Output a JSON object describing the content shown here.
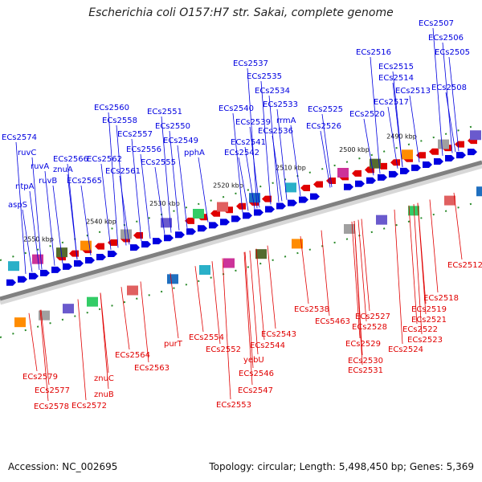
{
  "title": "Escherichia coli O157:H7 str. Sakai, complete genome",
  "accession": "Accession: NC_002695",
  "summary": "Topology: circular; Length: 5,498,450 bp; Genes: 5,369",
  "colors": {
    "forward": "#0000e0",
    "reverse": "#e00000",
    "backbone": "#808080"
  },
  "kbp_labels": [
    "2490 kbp",
    "2500 kbp",
    "2510 kbp",
    "2520 kbp",
    "2530 kbp",
    "2540 kbp",
    "2550 kbp"
  ],
  "forward_genes": [
    "ECs2507",
    "ECs2506",
    "ECs2505",
    "ECs2508",
    "ECs2516",
    "ECs2515",
    "ECs2514",
    "ECs2513",
    "ECs2517",
    "ECs2520",
    "ECs2525",
    "ECs2526",
    "ECs2537",
    "ECs2535",
    "ECs2534",
    "ECs2533",
    "rrmA",
    "ECs2536",
    "ECs2540",
    "ECs2539",
    "ECs2541",
    "ECs2542",
    "ECs2551",
    "ECs2550",
    "ECs2549",
    "pphA",
    "ECs2560",
    "ECs2558",
    "ECs2557",
    "ECs2556",
    "ECs2555",
    "ECs2562",
    "ECs2561",
    "ECs2566",
    "znuA",
    "ECs2565",
    "ECs2574",
    "ruvC",
    "ruvA",
    "ruvB",
    "ntpA",
    "aspS"
  ],
  "reverse_genes": [
    "ECs2512",
    "ECs2518",
    "ECs2519",
    "ECs2521",
    "ECs2522",
    "ECs2523",
    "ECs2524",
    "ECs2527",
    "ECs2528",
    "ECs2529",
    "ECs2530",
    "ECs2531",
    "ECs2538",
    "ECs5463",
    "ECs2543",
    "ECs2544",
    "yebU",
    "ECs2546",
    "ECs2547",
    "ECs2553",
    "ECs2552",
    "ECs2554",
    "purT",
    "ECs2564",
    "ECs2563",
    "znuC",
    "znuB",
    "ECs2572",
    "ECs2579",
    "ECs2577",
    "ECs2578"
  ]
}
